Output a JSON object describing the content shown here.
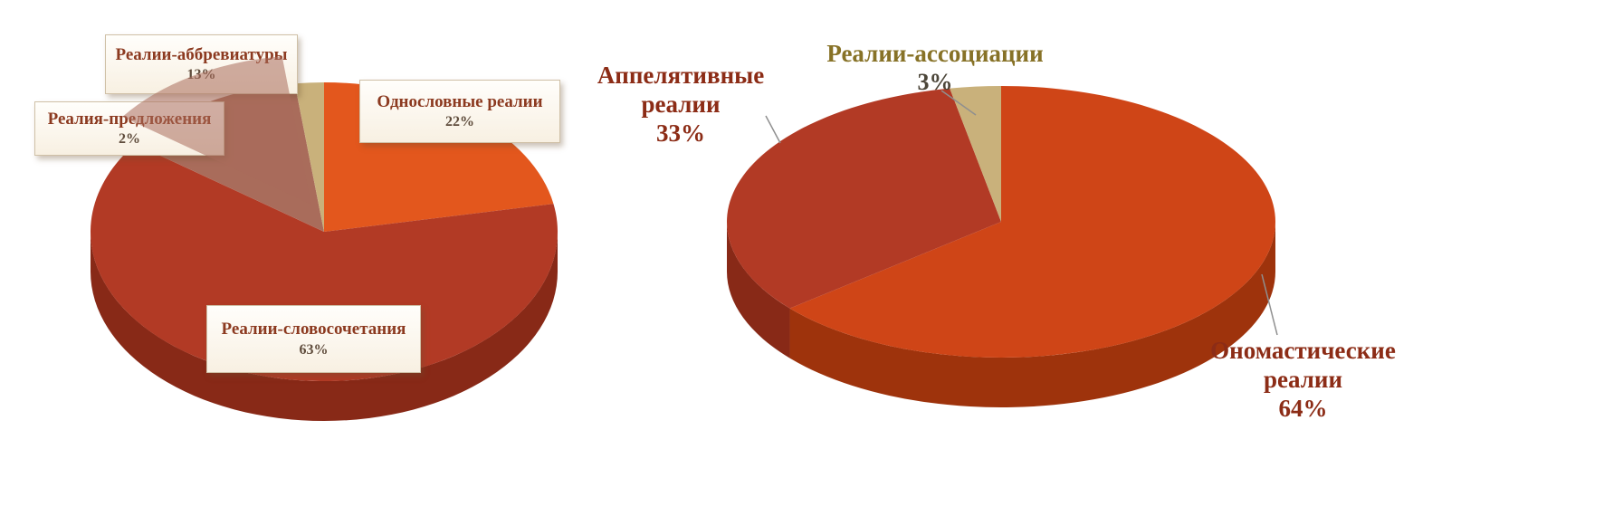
{
  "colors": {
    "orange_left": "#e3571d",
    "orange_left_side": "#b33e10",
    "dark_red": "#b23a25",
    "dark_red_side": "#882917",
    "orange_right": "#cf4517",
    "orange_right_side": "#9e330c",
    "tan": "#c9b17b",
    "tan_side": "#a08a58",
    "exploded_mauve": "#a96c5b",
    "callout_text_red": "#8c3a20",
    "callout_text_olive": "#877227",
    "callout_box_bg": "#fdfbf7",
    "callout_box_border": "#cfc0a6",
    "leader_line": "#8f8f8f"
  },
  "chart_data": [
    {
      "type": "pie",
      "style": "3d, one slice exploded and translucent",
      "title": "",
      "legend": "none",
      "start_angle": "top",
      "direction": "clockwise",
      "labels": [
        "Однословные реалии",
        "Реалии-словосочетания",
        "Реалии-аббревиатуры",
        "Реалия-предложения"
      ],
      "values": [
        22,
        63,
        13,
        2
      ],
      "slices": [
        {
          "label": "Однословные реалии",
          "pct": "22%",
          "value": 22,
          "color": "#e3571d",
          "side": "#b33e10"
        },
        {
          "label": "Реалии-словосочетания",
          "pct": "63%",
          "value": 63,
          "color": "#b23a25",
          "side": "#882917"
        },
        {
          "label": "Реалии-аббревиатуры",
          "pct": "13%",
          "value": 13,
          "color": "#a96c5b",
          "side": "#8a5546"
        },
        {
          "label": "Реалия-предложения",
          "pct": "2%",
          "value": 2,
          "color": "#c9b17b",
          "side": "#a08a58"
        }
      ],
      "exploded_slice_index": 2,
      "callout_style": "white boxed callouts"
    },
    {
      "type": "pie",
      "style": "3d",
      "title": "",
      "legend": "none",
      "start_angle": "top",
      "direction": "clockwise",
      "labels": [
        "Ономастические реалии",
        "Аппелятивные реалии",
        "Реалии-ассоциации"
      ],
      "values": [
        64,
        33,
        3
      ],
      "slices": [
        {
          "label": "Ономастические реалии",
          "pct": "64%",
          "value": 64,
          "color": "#cf4517",
          "side": "#9e330c"
        },
        {
          "label": "Аппелятивные реалии",
          "pct": "33%",
          "value": 33,
          "color": "#b23a25",
          "side": "#882917"
        },
        {
          "label": "Реалии-ассоциации",
          "pct": "3%",
          "value": 3,
          "color": "#c9b17b",
          "side": "#a08a58"
        }
      ],
      "callout_style": "plain bold text with leader lines"
    }
  ]
}
